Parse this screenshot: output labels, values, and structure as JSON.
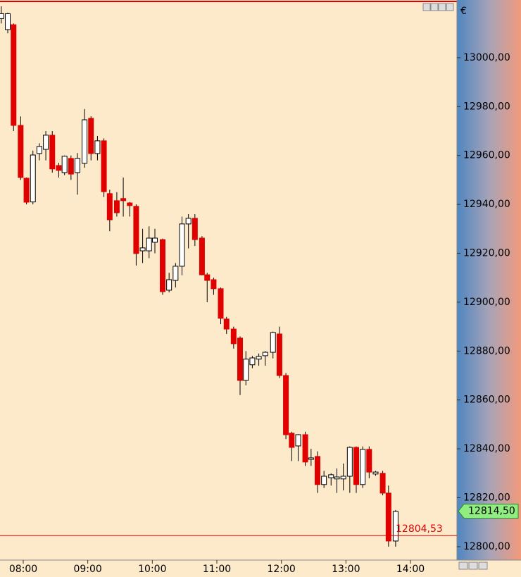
{
  "chart_data": {
    "type": "candlestick",
    "currency": "€",
    "up_color": "#ffffff",
    "down_color": "#e00000",
    "x": [
      7.66,
      7.76,
      7.85,
      7.96,
      8.05,
      8.15,
      8.25,
      8.35,
      8.45,
      8.55,
      8.64,
      8.74,
      8.84,
      8.95,
      9.05,
      9.15,
      9.25,
      9.34,
      9.45,
      9.55,
      9.65,
      9.75,
      9.85,
      9.95,
      10.04,
      10.16,
      10.26,
      10.36,
      10.46,
      10.56,
      10.66,
      10.77,
      10.85,
      10.95,
      11.06,
      11.15,
      11.26,
      11.36,
      11.45,
      11.55,
      11.65,
      11.75,
      11.87,
      11.97,
      12.07,
      12.16,
      12.26,
      12.37,
      12.46,
      12.56,
      12.66,
      12.77,
      12.86,
      12.96,
      13.06,
      13.16,
      13.26,
      13.36,
      13.46,
      13.57,
      13.66,
      13.77
    ],
    "open": [
      13016,
      13011.5,
      13013.5,
      12972.3,
      12950.7,
      12941,
      12960.8,
      12962.5,
      12968.3,
      12955.9,
      12953,
      12958.8,
      12953,
      12956.8,
      12975.2,
      12960.8,
      12966,
      12944.4,
      12941.5,
      12942.4,
      12940.6,
      12939.2,
      12921,
      12921,
      12924.5,
      12925.6,
      12904.9,
      12908.9,
      12914.7,
      12932,
      12934.3,
      12926.2,
      12911.2,
      12909.2,
      12905.5,
      12893.1,
      12889,
      12885.3,
      12868,
      12874.4,
      12876.7,
      12878.1,
      12879.5,
      12887,
      12870,
      12846.4,
      12841.2,
      12845.8,
      12835.7,
      12836.9,
      12825.4,
      12828.2,
      12827.7,
      12827.7,
      12828.8,
      12840.6,
      12825.4,
      12839.8,
      12829.7,
      12830,
      12821.9,
      12802.3
    ],
    "high": [
      13021,
      13018.4,
      13014,
      12976,
      12951,
      12962,
      12965,
      12970,
      12970,
      12957,
      12960,
      12960,
      12961,
      12979,
      12976,
      12968,
      12967,
      12946,
      12945,
      12951,
      12941,
      12940,
      12930,
      12931,
      12930,
      12926,
      12912,
      12916,
      12935,
      12936,
      12936,
      12927,
      12912,
      12910,
      12906,
      12894,
      12890,
      12886,
      12880,
      12878,
      12879,
      12880,
      12888,
      12890,
      12871,
      12847,
      12846,
      12847,
      12840,
      12839,
      12831,
      12830,
      12832,
      12834,
      12841,
      12841,
      12841,
      12841,
      12831,
      12831,
      12825,
      12815
    ],
    "low": [
      13014,
      13010,
      12970,
      12950,
      12940,
      12940,
      12958,
      12958,
      12953,
      12951,
      12952,
      12950,
      12944,
      12955,
      12958,
      12958,
      12943,
      12929,
      12935,
      12935,
      12935,
      12915,
      12916,
      12918,
      12920,
      12903,
      12904,
      12906,
      12911,
      12922,
      12923,
      12911,
      12900,
      12903,
      12891,
      12887,
      12881,
      12862,
      12866,
      12873,
      12874,
      12874,
      12877,
      12869,
      12844,
      12835,
      12835,
      12833,
      12833,
      12822,
      12824,
      12825,
      12822,
      12823,
      12822,
      12822,
      12824,
      12828,
      12829,
      12821,
      12800,
      12800
    ],
    "close": [
      13018,
      13018,
      12972.3,
      12951,
      12940.9,
      12960.2,
      12963.7,
      12968.3,
      12954.5,
      12953.9,
      12959.7,
      12952.4,
      12958.8,
      12974.6,
      12960.8,
      12966,
      12945.2,
      12933.7,
      12936.6,
      12941.5,
      12939.5,
      12919.9,
      12922.2,
      12926.2,
      12926.2,
      12904.3,
      12909.2,
      12914.7,
      12932,
      12934.3,
      12925.6,
      12911.2,
      12908.9,
      12905.5,
      12893.4,
      12889,
      12883,
      12868,
      12876.7,
      12877.2,
      12877.8,
      12879.5,
      12887.6,
      12870,
      12845.8,
      12840.6,
      12845.8,
      12834.6,
      12836.3,
      12825.4,
      12828.8,
      12829.4,
      12828.5,
      12828.8,
      12840.6,
      12825.4,
      12839.8,
      12830.5,
      12830.5,
      12821.9,
      12802.3,
      12814.4
    ],
    "xlim": [
      7.64,
      14.72
    ],
    "xticks": [
      {
        "value": 8,
        "label": "08:00"
      },
      {
        "value": 9,
        "label": "09:00"
      },
      {
        "value": 10,
        "label": "10:00"
      },
      {
        "value": 11,
        "label": "11:00"
      },
      {
        "value": 12,
        "label": "12:00"
      },
      {
        "value": 13,
        "label": "13:00"
      },
      {
        "value": 14,
        "label": "14:00"
      }
    ],
    "ylim": [
      12794.5,
      13023.6
    ],
    "yticks": [
      {
        "value": 12800,
        "label": "12800,00"
      },
      {
        "value": 12820,
        "label": "12820,00"
      },
      {
        "value": 12840,
        "label": "12840,00"
      },
      {
        "value": 12860,
        "label": "12860,00"
      },
      {
        "value": 12880,
        "label": "12880,00"
      },
      {
        "value": 12900,
        "label": "12900,00"
      },
      {
        "value": 12920,
        "label": "12920,00"
      },
      {
        "value": 12940,
        "label": "12940,00"
      },
      {
        "value": 12960,
        "label": "12960,00"
      },
      {
        "value": 12980,
        "label": "12980,00"
      },
      {
        "value": 13000,
        "label": "13000,00"
      }
    ],
    "level": {
      "value": 12804.53,
      "label": "12804,53",
      "color": "#e00000"
    },
    "last_price": {
      "value": 12814.5,
      "label": "12814,50",
      "color": "#90ee80"
    }
  }
}
